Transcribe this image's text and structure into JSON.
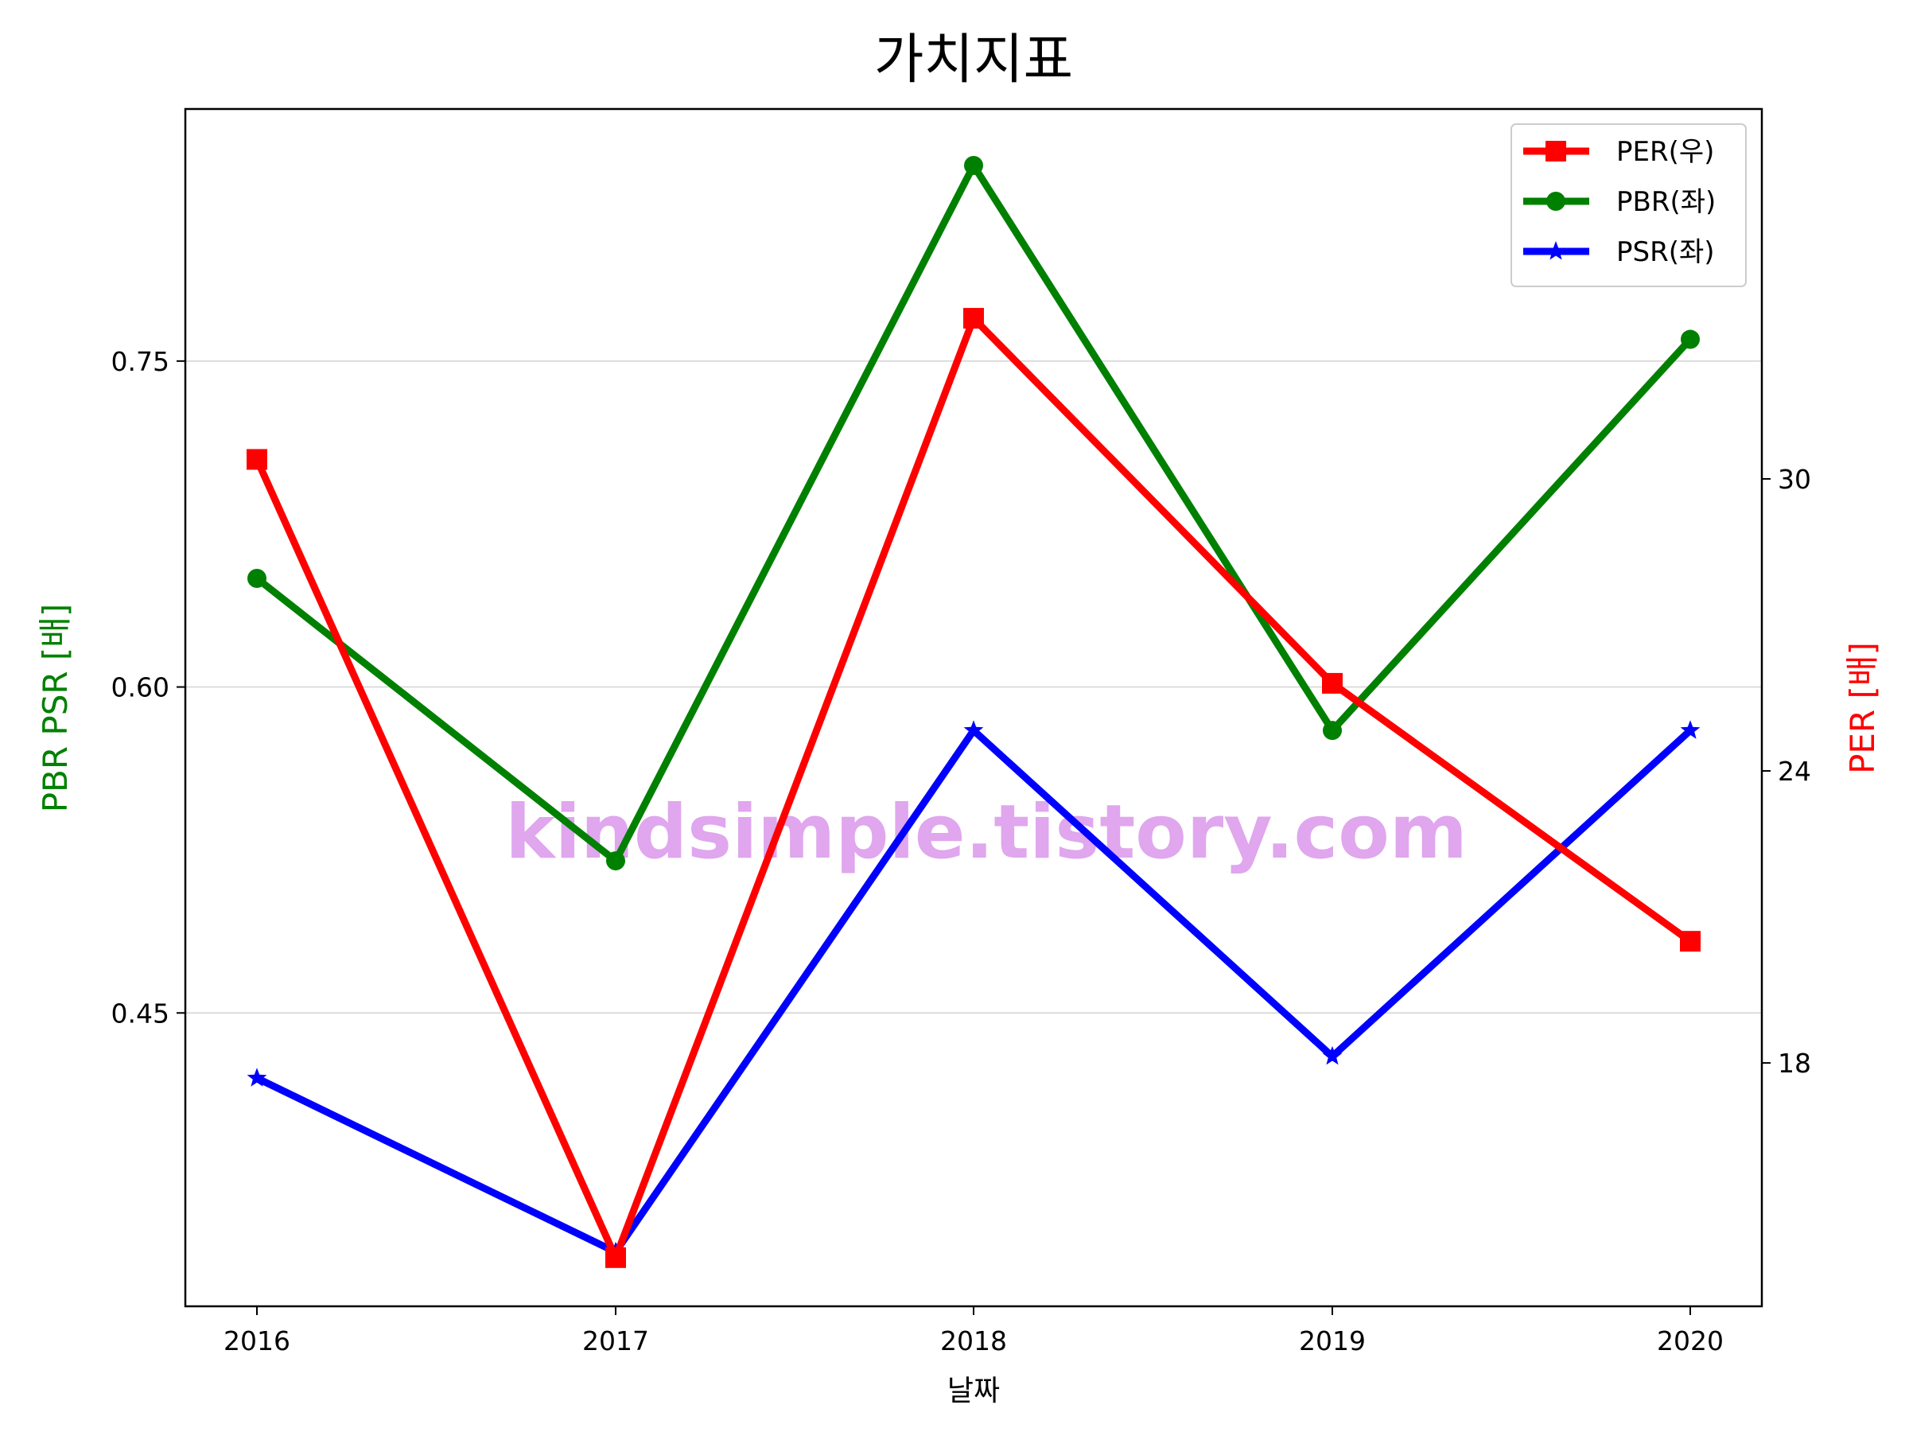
{
  "chart_data": {
    "type": "line",
    "title": "가치지표",
    "xlabel": "날짜",
    "ylabel_left": "PBR PSR [배]",
    "ylabel_right": "PER [배]",
    "categories": [
      "2016",
      "2017",
      "2018",
      "2019",
      "2020"
    ],
    "ylim_left": [
      0.315,
      0.866
    ],
    "yticks_left": [
      "0.45",
      "0.60",
      "0.75"
    ],
    "ylim_right": [
      13.0,
      37.6
    ],
    "yticks_right": [
      "18",
      "24",
      "30"
    ],
    "grid": "horizontal",
    "legend_placement": "top-right",
    "watermark": "kindsimple.tistory.com",
    "series": [
      {
        "name": "PER(우)",
        "axis": "right",
        "color": "#ff0000",
        "marker": "square",
        "values": [
          30.4,
          14.0,
          33.3,
          25.8,
          20.5
        ]
      },
      {
        "name": "PBR(좌)",
        "axis": "left",
        "color": "#008000",
        "marker": "circle",
        "values": [
          0.65,
          0.52,
          0.84,
          0.58,
          0.76
        ]
      },
      {
        "name": "PSR(좌)",
        "axis": "left",
        "color": "#0000ff",
        "marker": "star",
        "values": [
          0.42,
          0.34,
          0.58,
          0.43,
          0.58
        ]
      }
    ]
  }
}
